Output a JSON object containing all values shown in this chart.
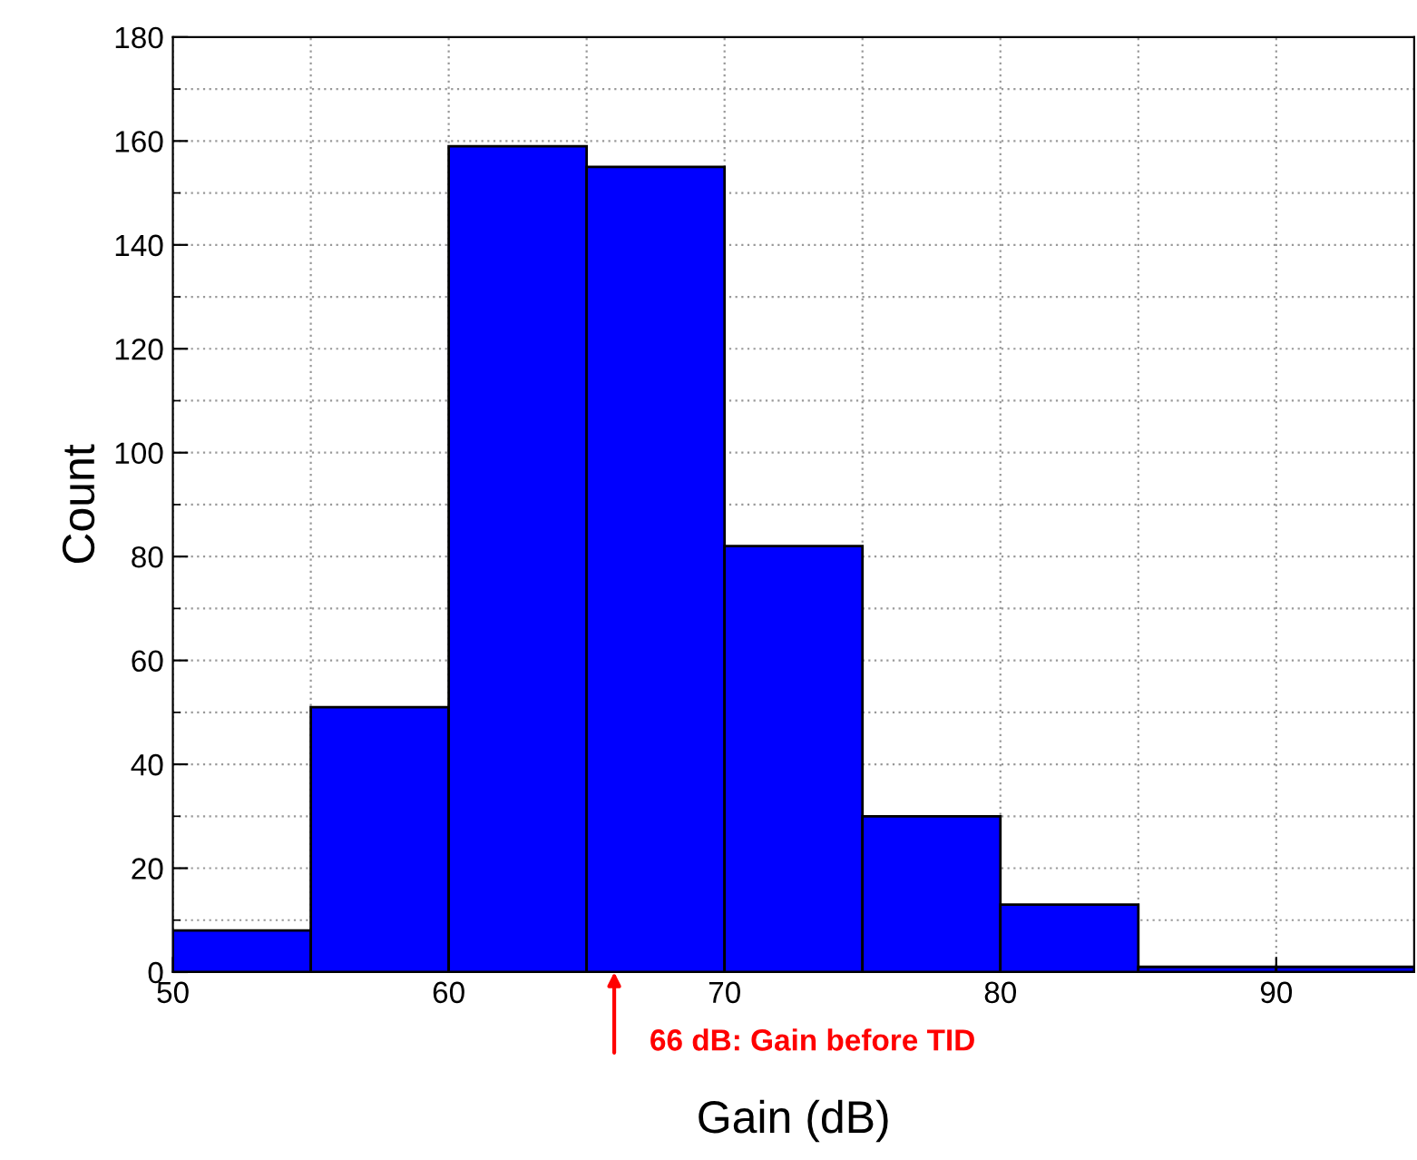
{
  "chart_data": {
    "type": "histogram",
    "xlabel": "Gain (dB)",
    "ylabel": "Count",
    "bins": [
      50,
      55,
      60,
      65,
      70,
      75,
      80,
      85,
      90,
      95
    ],
    "values": [
      8,
      51,
      159,
      155,
      82,
      30,
      13,
      1,
      1
    ],
    "color": "#0000ff",
    "xlim": [
      50,
      95
    ],
    "xticks": [
      50,
      60,
      70,
      80,
      90
    ],
    "ylim": [
      0,
      180
    ],
    "yticks": [
      0,
      20,
      40,
      60,
      80,
      100,
      120,
      140,
      160,
      180
    ],
    "grid": true,
    "annotations": [
      {
        "text": "66 dB: Gain before TID",
        "x": 66,
        "y": 0
      }
    ]
  }
}
